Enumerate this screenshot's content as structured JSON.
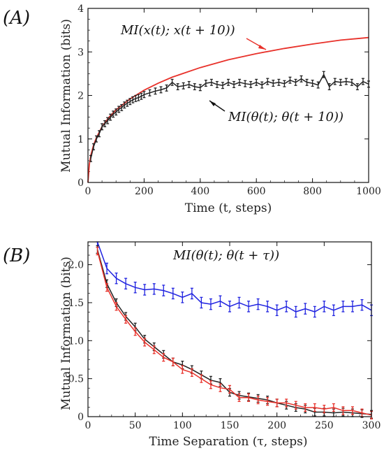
{
  "chart_data": [
    {
      "panel": "(A)",
      "type": "line",
      "xlabel": "Time (t, steps)",
      "ylabel": "Mutual Information (bits)",
      "xlim": [
        0,
        1000
      ],
      "ylim": [
        0,
        4
      ],
      "xticks": [
        0,
        200,
        400,
        600,
        800,
        1000
      ],
      "yticks": [
        0,
        1,
        2,
        3,
        4
      ],
      "annotations": [
        "MI(x(t); x(t + 10))",
        "MI(θ(t); θ(t + 10))"
      ],
      "series": [
        {
          "color": "#e8312a",
          "kind": "line",
          "x": [
            0,
            5,
            10,
            20,
            30,
            50,
            75,
            100,
            150,
            200,
            250,
            300,
            400,
            500,
            600,
            700,
            800,
            900,
            1000
          ],
          "y": [
            0,
            0.42,
            0.62,
            0.86,
            1.03,
            1.28,
            1.5,
            1.67,
            1.92,
            2.12,
            2.28,
            2.42,
            2.64,
            2.82,
            2.96,
            3.08,
            3.18,
            3.27,
            3.33
          ]
        },
        {
          "color": "#222222",
          "kind": "errorbar",
          "x": [
            10,
            20,
            30,
            40,
            50,
            60,
            70,
            80,
            90,
            100,
            110,
            120,
            130,
            140,
            150,
            160,
            170,
            180,
            190,
            200,
            220,
            240,
            260,
            280,
            300,
            320,
            340,
            360,
            380,
            400,
            420,
            440,
            460,
            480,
            500,
            520,
            540,
            560,
            580,
            600,
            620,
            640,
            660,
            680,
            700,
            720,
            740,
            760,
            780,
            800,
            820,
            840,
            860,
            880,
            900,
            920,
            940,
            960,
            980,
            1000
          ],
          "y": [
            0.55,
            0.82,
            1.0,
            1.12,
            1.28,
            1.35,
            1.42,
            1.5,
            1.57,
            1.62,
            1.68,
            1.72,
            1.78,
            1.82,
            1.86,
            1.9,
            1.93,
            1.95,
            1.98,
            2.02,
            2.06,
            2.1,
            2.13,
            2.17,
            2.3,
            2.2,
            2.22,
            2.25,
            2.2,
            2.18,
            2.28,
            2.3,
            2.25,
            2.23,
            2.3,
            2.25,
            2.3,
            2.27,
            2.25,
            2.3,
            2.24,
            2.32,
            2.28,
            2.3,
            2.27,
            2.35,
            2.3,
            2.38,
            2.3,
            2.28,
            2.24,
            2.48,
            2.2,
            2.32,
            2.3,
            2.32,
            2.3,
            2.2,
            2.32,
            2.26
          ],
          "err": 0.07
        }
      ]
    },
    {
      "panel": "(B)",
      "type": "line",
      "xlabel": "Time Separation (τ, steps)",
      "ylabel": "Mutual Information (bits)",
      "xlim": [
        0,
        300
      ],
      "ylim": [
        0,
        2.3
      ],
      "xticks": [
        0,
        50,
        100,
        150,
        200,
        250,
        300
      ],
      "yticks": [
        0,
        0.5,
        1.0,
        1.5,
        2.0
      ],
      "ytick_labels": [
        "0",
        "0.5",
        "1.0",
        "1.5",
        "2.0"
      ],
      "annotations": [
        "MI(θ(t); θ(t + τ))"
      ],
      "series": [
        {
          "color": "#1f22e0",
          "kind": "errorbar",
          "x": [
            10,
            20,
            30,
            40,
            50,
            60,
            70,
            80,
            90,
            100,
            110,
            120,
            130,
            140,
            150,
            160,
            170,
            180,
            190,
            200,
            210,
            220,
            230,
            240,
            250,
            260,
            270,
            280,
            290,
            300
          ],
          "y": [
            2.3,
            1.95,
            1.82,
            1.75,
            1.7,
            1.67,
            1.68,
            1.66,
            1.62,
            1.57,
            1.62,
            1.5,
            1.48,
            1.52,
            1.45,
            1.5,
            1.45,
            1.48,
            1.45,
            1.4,
            1.45,
            1.38,
            1.42,
            1.38,
            1.45,
            1.4,
            1.45,
            1.45,
            1.47,
            1.4
          ],
          "err": 0.07
        },
        {
          "color": "#222222",
          "kind": "errorbar",
          "x": [
            10,
            20,
            30,
            40,
            50,
            60,
            70,
            80,
            90,
            100,
            110,
            120,
            130,
            140,
            150,
            160,
            170,
            180,
            190,
            200,
            210,
            220,
            230,
            240,
            250,
            260,
            270,
            280,
            290,
            300
          ],
          "y": [
            2.2,
            1.75,
            1.5,
            1.32,
            1.18,
            1.02,
            0.92,
            0.82,
            0.72,
            0.68,
            0.62,
            0.55,
            0.48,
            0.45,
            0.32,
            0.28,
            0.26,
            0.24,
            0.22,
            0.18,
            0.15,
            0.12,
            0.1,
            0.06,
            0.06,
            0.05,
            0.06,
            0.05,
            0.04,
            0.03
          ],
          "err": 0.05
        },
        {
          "color": "#e8312a",
          "kind": "errorbar",
          "x": [
            10,
            20,
            30,
            40,
            50,
            60,
            70,
            80,
            90,
            100,
            110,
            120,
            130,
            140,
            150,
            160,
            170,
            180,
            190,
            200,
            210,
            220,
            230,
            240,
            250,
            260,
            270,
            280,
            290,
            300
          ],
          "y": [
            2.18,
            1.7,
            1.45,
            1.28,
            1.12,
            0.98,
            0.88,
            0.78,
            0.72,
            0.62,
            0.58,
            0.5,
            0.42,
            0.38,
            0.36,
            0.25,
            0.25,
            0.22,
            0.2,
            0.18,
            0.18,
            0.15,
            0.12,
            0.12,
            0.1,
            0.12,
            0.08,
            0.08,
            0.05,
            0.02
          ],
          "err": 0.05
        }
      ]
    }
  ]
}
